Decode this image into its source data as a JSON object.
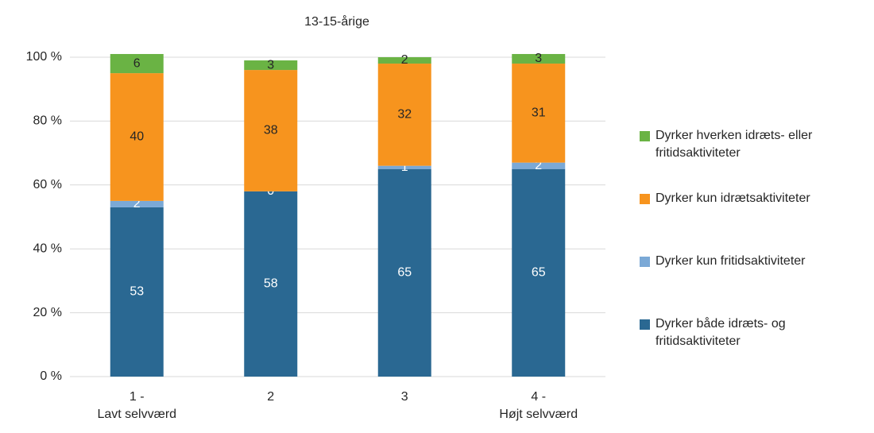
{
  "chart_data": {
    "type": "stacked_bar",
    "title": "13-15-årige",
    "categories": [
      [
        "1 -",
        "Lavt selvværd"
      ],
      [
        "2"
      ],
      [
        "3"
      ],
      [
        "4 -",
        "Højt selvværd"
      ]
    ],
    "series": [
      {
        "name": "Dyrker både idræts- og fritidsaktiviteter",
        "color": "#2a6892",
        "label_color": "#ffffff",
        "values": [
          53,
          58,
          65,
          65
        ]
      },
      {
        "name": "Dyrker kun fritidsaktiviteter",
        "color": "#7ba9d6",
        "label_color": "#ffffff",
        "values": [
          2,
          0,
          1,
          2
        ]
      },
      {
        "name": "Dyrker kun idrætsaktiviteter",
        "color": "#f7941e",
        "label_color": "#262626",
        "values": [
          40,
          38,
          32,
          31
        ]
      },
      {
        "name": "Dyrker hverken idræts- eller fritidsaktiviteter",
        "color": "#6ab344",
        "label_color": "#262626",
        "values": [
          6,
          3,
          2,
          3
        ]
      }
    ],
    "ylim": [
      0,
      100
    ],
    "yticks": [
      {
        "value": 0,
        "label": "0 %"
      },
      {
        "value": 20,
        "label": "20 %"
      },
      {
        "value": 40,
        "label": "40 %"
      },
      {
        "value": 60,
        "label": "60 %"
      },
      {
        "value": 80,
        "label": "80 %"
      },
      {
        "value": 100,
        "label": "100 %"
      }
    ],
    "grid": true
  }
}
